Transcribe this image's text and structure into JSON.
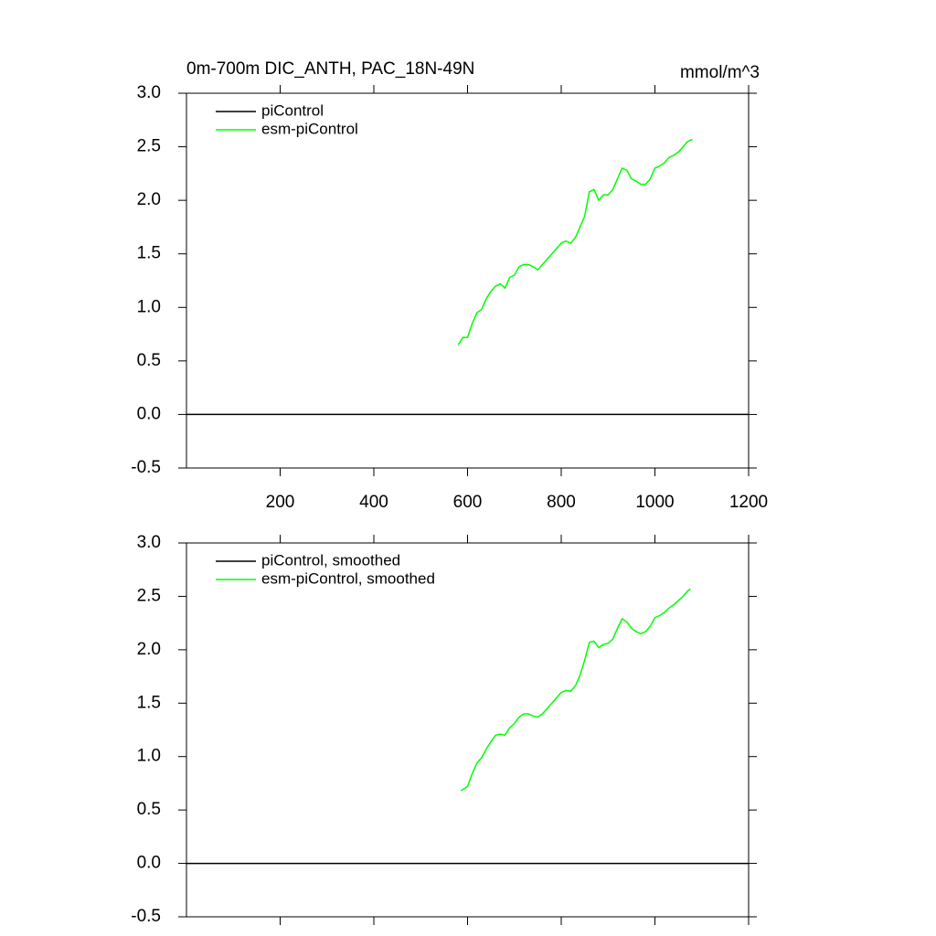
{
  "chart_data": [
    {
      "type": "line",
      "title": "0m-700m DIC_ANTH, PAC_18N-49N",
      "units": "mmol/m^3",
      "xlim": [
        0,
        1200
      ],
      "xticks": [
        200,
        400,
        600,
        800,
        1000,
        1200
      ],
      "ylim": [
        -0.5,
        3.0
      ],
      "yticks": [
        {
          "value": -0.5,
          "label": "-0.5"
        },
        {
          "value": 0,
          "label": "0.0"
        },
        {
          "value": 0.5,
          "label": "0.5"
        },
        {
          "value": 1,
          "label": "1.0"
        },
        {
          "value": 1.5,
          "label": "1.5"
        },
        {
          "value": 2,
          "label": "2.0"
        },
        {
          "value": 2.5,
          "label": "2.5"
        },
        {
          "value": 3,
          "label": "3.0"
        }
      ],
      "series": [
        {
          "name": "piControl",
          "color": "#000000",
          "x": [
            0,
            1200
          ],
          "values": [
            0,
            0
          ]
        },
        {
          "name": "esm-piControl",
          "color": "#00ff00",
          "x": [
            580,
            590,
            600,
            610,
            620,
            630,
            640,
            650,
            660,
            670,
            680,
            690,
            700,
            710,
            720,
            730,
            740,
            750,
            760,
            770,
            780,
            790,
            800,
            810,
            820,
            830,
            840,
            850,
            860,
            870,
            880,
            890,
            900,
            910,
            920,
            930,
            940,
            950,
            960,
            970,
            980,
            990,
            1000,
            1010,
            1020,
            1030,
            1040,
            1050,
            1060,
            1070,
            1080
          ],
          "values": [
            0.65,
            0.72,
            0.72,
            0.85,
            0.95,
            0.98,
            1.08,
            1.15,
            1.2,
            1.22,
            1.18,
            1.28,
            1.3,
            1.38,
            1.4,
            1.4,
            1.38,
            1.35,
            1.4,
            1.45,
            1.5,
            1.55,
            1.6,
            1.62,
            1.6,
            1.65,
            1.75,
            1.85,
            2.08,
            2.1,
            2.0,
            2.05,
            2.05,
            2.1,
            2.2,
            2.3,
            2.28,
            2.2,
            2.18,
            2.15,
            2.15,
            2.2,
            2.3,
            2.32,
            2.35,
            2.4,
            2.42,
            2.45,
            2.5,
            2.55,
            2.57
          ]
        }
      ]
    },
    {
      "type": "line",
      "xlim": [
        0,
        1200
      ],
      "xticks": [
        200,
        400,
        600,
        800,
        1000,
        1200
      ],
      "ylim": [
        -0.5,
        3.0
      ],
      "yticks": [
        {
          "value": -0.5,
          "label": "-0.5"
        },
        {
          "value": 0,
          "label": "0.0"
        },
        {
          "value": 0.5,
          "label": "0.5"
        },
        {
          "value": 1,
          "label": "1.0"
        },
        {
          "value": 1.5,
          "label": "1.5"
        },
        {
          "value": 2,
          "label": "2.0"
        },
        {
          "value": 2.5,
          "label": "2.5"
        },
        {
          "value": 3,
          "label": "3.0"
        }
      ],
      "series": [
        {
          "name": "piControl, smoothed",
          "color": "#000000",
          "x": [
            0,
            1200
          ],
          "values": [
            0,
            0
          ]
        },
        {
          "name": "esm-piControl, smoothed",
          "color": "#00ff00",
          "x": [
            586,
            600,
            610,
            620,
            630,
            640,
            650,
            660,
            670,
            680,
            690,
            700,
            710,
            720,
            730,
            740,
            750,
            760,
            770,
            780,
            790,
            800,
            810,
            820,
            830,
            840,
            850,
            860,
            870,
            880,
            890,
            900,
            910,
            920,
            930,
            940,
            950,
            960,
            970,
            980,
            990,
            1000,
            1010,
            1020,
            1030,
            1040,
            1050,
            1060,
            1070,
            1076
          ],
          "values": [
            0.68,
            0.72,
            0.84,
            0.94,
            0.99,
            1.07,
            1.14,
            1.2,
            1.21,
            1.2,
            1.27,
            1.31,
            1.37,
            1.4,
            1.4,
            1.38,
            1.37,
            1.4,
            1.45,
            1.5,
            1.55,
            1.6,
            1.62,
            1.61,
            1.66,
            1.76,
            1.9,
            2.07,
            2.08,
            2.02,
            2.05,
            2.06,
            2.1,
            2.2,
            2.29,
            2.26,
            2.2,
            2.17,
            2.15,
            2.17,
            2.22,
            2.3,
            2.32,
            2.35,
            2.39,
            2.42,
            2.46,
            2.5,
            2.55,
            2.57
          ]
        }
      ]
    }
  ]
}
